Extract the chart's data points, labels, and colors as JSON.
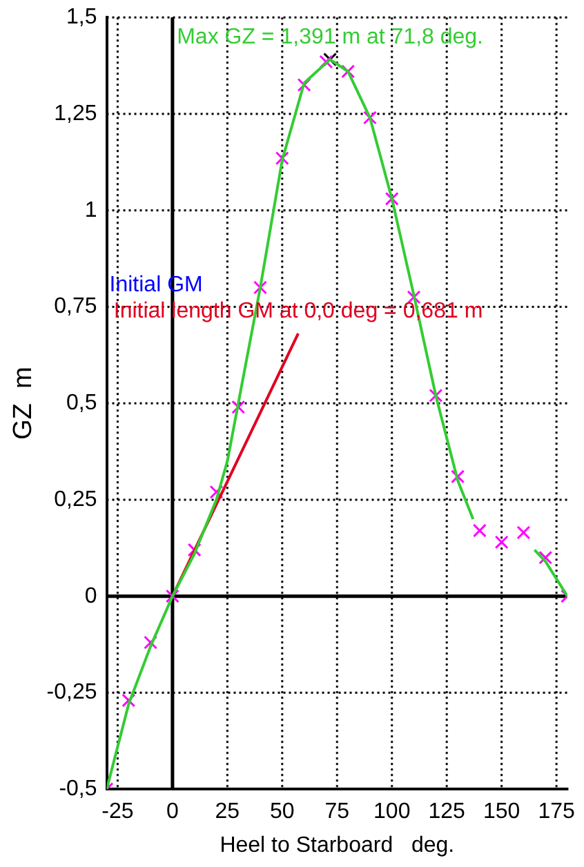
{
  "chart_data": {
    "type": "line",
    "xlabel": "Heel to Starboard   deg.",
    "ylabel": "GZ  m",
    "xlim": [
      -30,
      180
    ],
    "xticks": [
      {
        "value": -25,
        "label": "-25"
      },
      0,
      25,
      50,
      75,
      100,
      125,
      150,
      175
    ],
    "ylim": [
      -0.5,
      1.5
    ],
    "yticks": [
      {
        "value": -0.5,
        "label": "-0,5"
      },
      {
        "value": -0.25,
        "label": "-0,25"
      },
      0,
      {
        "value": 0.25,
        "label": "0,25"
      },
      {
        "value": 0.5,
        "label": "0,5"
      },
      {
        "value": 0.75,
        "label": "0,75"
      },
      1,
      {
        "value": 1.25,
        "label": "1,25"
      },
      {
        "value": 1.5,
        "label": "1,5"
      }
    ],
    "grid": true,
    "legend": false,
    "line_style": "solid",
    "series": [
      {
        "color": "#33cc33",
        "marker": "none",
        "x": [
          -30,
          -20,
          -10,
          0,
          10,
          20,
          25,
          30,
          40,
          50,
          60,
          71.8,
          80,
          90,
          100,
          110,
          120,
          130,
          137,
          150,
          165,
          170,
          180
        ],
        "values": [
          -0.5,
          -0.28,
          -0.13,
          0,
          0.11,
          0.25,
          0.35,
          0.5,
          0.8,
          1.13,
          1.33,
          1.391,
          1.36,
          1.24,
          1.03,
          0.78,
          0.52,
          0.3,
          0.2,
          null,
          0.12,
          0.09,
          0
        ]
      },
      {
        "color": "#e00020",
        "marker": "none",
        "x": [
          0,
          57.3
        ],
        "values": [
          0,
          0.681
        ]
      },
      {
        "type": "scatter",
        "color": "#ff00ff",
        "marker": "cross",
        "x": [
          -30,
          -20,
          -10,
          0,
          10,
          20,
          30,
          40,
          50,
          60,
          70,
          80,
          90,
          100,
          110,
          120,
          130,
          140,
          150,
          160,
          170,
          180
        ],
        "values": [
          -0.5,
          -0.27,
          -0.12,
          0,
          0.12,
          0.27,
          0.49,
          0.8,
          1.135,
          1.325,
          1.385,
          1.36,
          1.24,
          1.03,
          0.775,
          0.52,
          0.31,
          0.17,
          0.14,
          0.165,
          0.1,
          0
        ]
      },
      {
        "type": "scatter",
        "color": "#000000",
        "marker": "cross",
        "x": [
          71.8
        ],
        "values": [
          1.391
        ]
      }
    ],
    "annotations": [
      {
        "text": "Max GZ = 1,391 m at 71,8 deg.",
        "x": 71.8,
        "y": 1.391
      },
      {
        "text": "Initial length GM at 0,0 deg = 0,681 m",
        "x": 57.3,
        "y": 0.681
      },
      "Initial GM"
    ]
  }
}
